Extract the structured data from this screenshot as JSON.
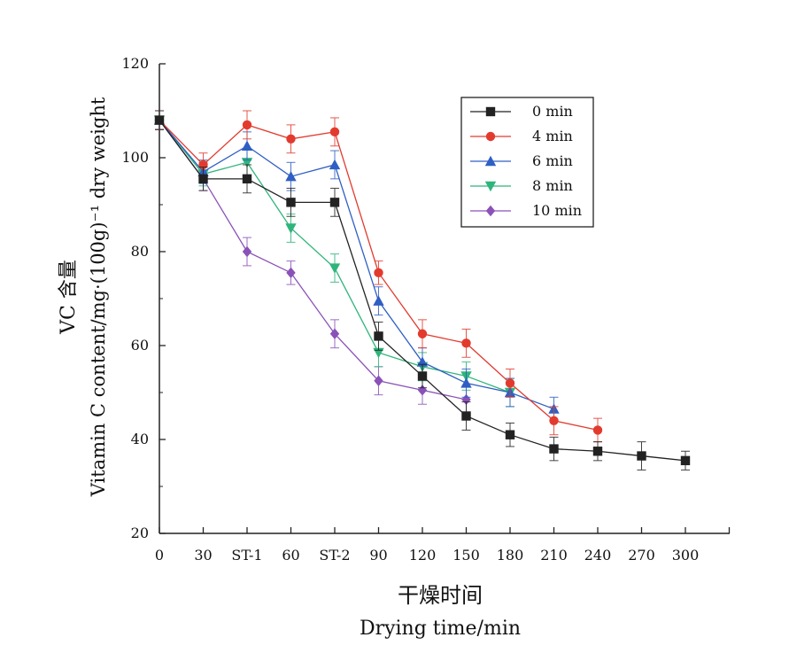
{
  "chart_data": {
    "type": "line",
    "ylabel": "Vitamin C content/mg·(100g)⁻¹ dry weight",
    "ylabel_cn": "VC 含量",
    "xlabel_cn": "干燥时间",
    "xlabel": "Drying time/min",
    "x_categories": [
      "0",
      "30",
      "ST-1",
      "60",
      "ST-2",
      "90",
      "120",
      "150",
      "180",
      "210",
      "240",
      "270",
      "300"
    ],
    "ylim": [
      20,
      120
    ],
    "yticks": [
      "20",
      "40",
      "60",
      "80",
      "100",
      "120"
    ],
    "legend_position": "top-right",
    "grid": false,
    "series": [
      {
        "name": "0 min",
        "color": "#222222",
        "marker": "square",
        "values": [
          108,
          95.5,
          95.5,
          90.5,
          90.5,
          62,
          53.5,
          45,
          41,
          38,
          37.5,
          36.5,
          35.5
        ],
        "errors": [
          2,
          2.5,
          3,
          3,
          3,
          3,
          2.5,
          3,
          2.5,
          2.5,
          2,
          3,
          2
        ]
      },
      {
        "name": "4 min",
        "color": "#e23b2e",
        "marker": "circle",
        "values": [
          108,
          98.5,
          107,
          104,
          105.5,
          75.5,
          62.5,
          60.5,
          52,
          44,
          42,
          null,
          null
        ],
        "errors": [
          2,
          2.5,
          3,
          3,
          3,
          2.5,
          3,
          3,
          3,
          3,
          2.5,
          null,
          null
        ]
      },
      {
        "name": "6 min",
        "color": "#2f5fc4",
        "marker": "triangle-up",
        "values": [
          108,
          97,
          102.5,
          96,
          98.5,
          69.5,
          56.5,
          52,
          50,
          46.5,
          null,
          null,
          null
        ],
        "errors": [
          2,
          2.5,
          3,
          3,
          3,
          3,
          3,
          3,
          3,
          2.5,
          null,
          null,
          null
        ]
      },
      {
        "name": "8 min",
        "color": "#2fb57a",
        "marker": "triangle-down",
        "values": [
          108,
          96.5,
          99,
          85,
          76.5,
          58.5,
          55.5,
          53.5,
          50,
          null,
          null,
          null,
          null
        ],
        "errors": [
          2,
          2.5,
          3,
          3,
          3,
          3,
          3,
          3,
          3,
          null,
          null,
          null,
          null
        ]
      },
      {
        "name": "10 min",
        "color": "#8a52b8",
        "marker": "diamond",
        "values": [
          108,
          95.5,
          80,
          75.5,
          62.5,
          52.5,
          50.5,
          48.5,
          null,
          null,
          null,
          null,
          null
        ],
        "errors": [
          2,
          2.5,
          3,
          2.5,
          3,
          3,
          3,
          3,
          null,
          null,
          null,
          null,
          null
        ]
      }
    ]
  }
}
